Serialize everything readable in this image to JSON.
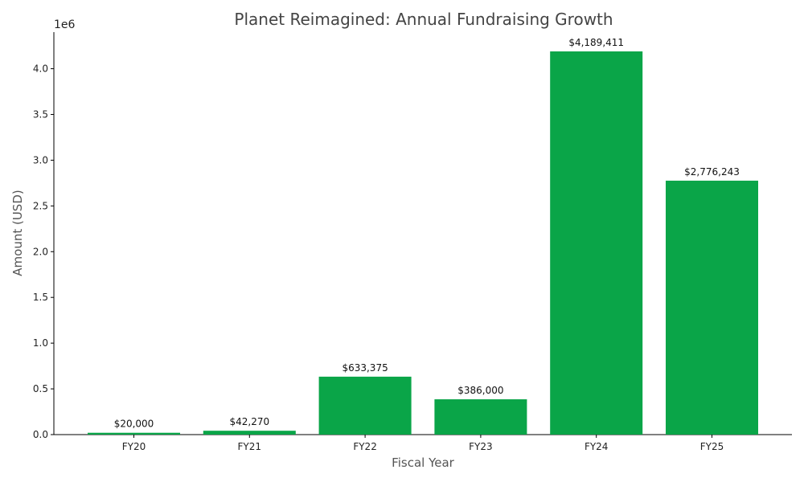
{
  "chart_data": {
    "type": "bar",
    "title": "Planet Reimagined: Annual Fundraising Growth",
    "xlabel": "Fiscal Year",
    "ylabel": "Amount (USD)",
    "y_multiplier_label": "1e6",
    "categories": [
      "FY20",
      "FY21",
      "FY22",
      "FY23",
      "FY24",
      "FY25"
    ],
    "values": [
      20000,
      42270,
      633375,
      386000,
      4189411,
      2776243
    ],
    "data_labels": [
      "$20,000",
      "$42,270",
      "$633,375",
      "$386,000",
      "$4,189,411",
      "$2,776,243"
    ],
    "ylim": [
      0,
      4400000
    ],
    "yticks": [
      0,
      500000,
      1000000,
      1500000,
      2000000,
      2500000,
      3000000,
      3500000,
      4000000
    ],
    "ytick_labels": [
      "0.0",
      "0.5",
      "1.0",
      "1.5",
      "2.0",
      "2.5",
      "3.0",
      "3.5",
      "4.0"
    ],
    "bar_color": "#0aa548",
    "grid": false,
    "legend": "none"
  }
}
